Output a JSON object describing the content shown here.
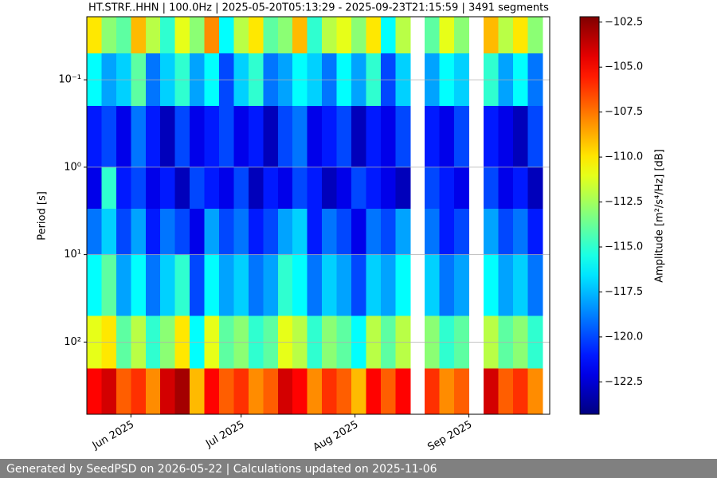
{
  "chart_data": {
    "type": "heatmap",
    "title": "HT.STRF..HHN | 100.0Hz | 2025-05-20T05:13:29 - 2025-09-23T21:15:59 | 3491 segments",
    "ylabel": "Period [s]",
    "colorbar_label": "Amplitude [m²/s⁴/Hz] [dB]",
    "colormap": "jet",
    "ylog": true,
    "yinvert": true,
    "grid": true,
    "x": [
      "2025-05-20",
      "2025-05-24",
      "2025-05-28",
      "2025-06-01",
      "2025-06-05",
      "2025-06-09",
      "2025-06-13",
      "2025-06-17",
      "2025-06-21",
      "2025-06-25",
      "2025-06-29",
      "2025-07-03",
      "2025-07-07",
      "2025-07-11",
      "2025-07-15",
      "2025-07-19",
      "2025-07-23",
      "2025-07-27",
      "2025-07-31",
      "2025-08-04",
      "2025-08-08",
      "2025-08-12",
      "2025-08-16",
      "2025-08-20",
      "2025-08-24",
      "2025-08-28",
      "2025-09-01",
      "2025-09-05",
      "2025-09-09",
      "2025-09-13",
      "2025-09-17",
      "2025-09-21",
      "2025-09-23"
    ],
    "y": [
      0.019,
      0.05,
      0.2,
      1,
      3,
      10,
      50,
      200,
      670
    ],
    "values": [
      [
        -110,
        -113,
        -114,
        -109,
        -112,
        -115,
        -111,
        -113,
        -108,
        -116,
        -112,
        -110,
        -114,
        -113,
        -109,
        -115,
        -112,
        -111,
        -113,
        -110,
        -116,
        -112,
        null,
        -114,
        -111,
        -113,
        null,
        -109,
        -112,
        -110,
        -113,
        null
      ],
      [
        -116,
        -118,
        -117,
        -114,
        -119,
        -117,
        -115,
        -118,
        -116,
        -120,
        -117,
        -115,
        -119,
        -118,
        -116,
        -117,
        -119,
        -116,
        -118,
        -115,
        -120,
        -117,
        null,
        -118,
        -116,
        -117,
        null,
        -115,
        -118,
        -116,
        -119,
        null
      ],
      [
        -121,
        -120,
        -122,
        -119,
        -121,
        -123,
        -120,
        -122,
        -121,
        -120,
        -122,
        -121,
        -123,
        -120,
        -119,
        -122,
        -121,
        -120,
        -123,
        -121,
        -122,
        -120,
        null,
        -121,
        -122,
        -120,
        null,
        -121,
        -122,
        -123,
        -120,
        null
      ],
      [
        -122,
        -115,
        -121,
        -120,
        -122,
        -121,
        -123,
        -120,
        -121,
        -122,
        -120,
        -123,
        -121,
        -122,
        -120,
        -121,
        -123,
        -122,
        -120,
        -121,
        -122,
        -123,
        null,
        -120,
        -121,
        -122,
        null,
        -120,
        -122,
        -121,
        -123,
        null
      ],
      [
        -119,
        -117,
        -120,
        -118,
        -121,
        -119,
        -120,
        -122,
        -118,
        -120,
        -119,
        -121,
        -120,
        -118,
        -117,
        -121,
        -119,
        -120,
        -122,
        -119,
        -120,
        -118,
        null,
        -119,
        -121,
        -120,
        null,
        -118,
        -120,
        -119,
        -121,
        null
      ],
      [
        -116,
        -114,
        -118,
        -116,
        -119,
        -117,
        -115,
        -120,
        -116,
        -118,
        -117,
        -119,
        -118,
        -115,
        -116,
        -119,
        -117,
        -118,
        -120,
        -117,
        -118,
        -116,
        null,
        -117,
        -119,
        -118,
        null,
        -116,
        -118,
        -117,
        -119,
        null
      ],
      [
        -111,
        -110,
        -114,
        -112,
        -115,
        -113,
        -110,
        -116,
        -111,
        -114,
        -113,
        -115,
        -114,
        -111,
        -112,
        -115,
        -113,
        -114,
        -116,
        -112,
        -114,
        -112,
        null,
        -113,
        -115,
        -114,
        null,
        -112,
        -114,
        -113,
        -115,
        null
      ],
      [
        -105,
        -104,
        -107,
        -106,
        -108,
        -104,
        -103,
        -109,
        -105,
        -107,
        -106,
        -108,
        -107,
        -104,
        -105,
        -108,
        -106,
        -107,
        -109,
        -105,
        -107,
        -105,
        null,
        -106,
        -108,
        -107,
        null,
        -104,
        -107,
        -106,
        -108,
        null
      ]
    ],
    "xlim": [
      "2025-05-20",
      "2025-09-23"
    ],
    "xticks": [
      {
        "value": "2025-06-01",
        "label": "Jun 2025"
      },
      {
        "value": "2025-07-01",
        "label": "Jul 2025"
      },
      {
        "value": "2025-08-01",
        "label": "Aug 2025"
      },
      {
        "value": "2025-09-01",
        "label": "Sep 2025"
      }
    ],
    "ylim": [
      0.019,
      670
    ],
    "yticks": [
      {
        "value": 0.1,
        "label": "10⁻¹"
      },
      {
        "value": 1,
        "label": "10⁰"
      },
      {
        "value": 10,
        "label": "10¹"
      },
      {
        "value": 100,
        "label": "10²"
      }
    ],
    "clim": [
      -124.3,
      -102.2
    ],
    "cticks": [
      {
        "value": -102.5,
        "label": "−102.5"
      },
      {
        "value": -105,
        "label": "−105.0"
      },
      {
        "value": -107.5,
        "label": "−107.5"
      },
      {
        "value": -110,
        "label": "−110.0"
      },
      {
        "value": -112.5,
        "label": "−112.5"
      },
      {
        "value": -115,
        "label": "−115.0"
      },
      {
        "value": -117.5,
        "label": "−117.5"
      },
      {
        "value": -120,
        "label": "−120.0"
      },
      {
        "value": -122.5,
        "label": "−122.5"
      }
    ]
  },
  "footer": "Generated by SeedPSD on 2026-05-22 | Calculations updated on 2025-11-06"
}
